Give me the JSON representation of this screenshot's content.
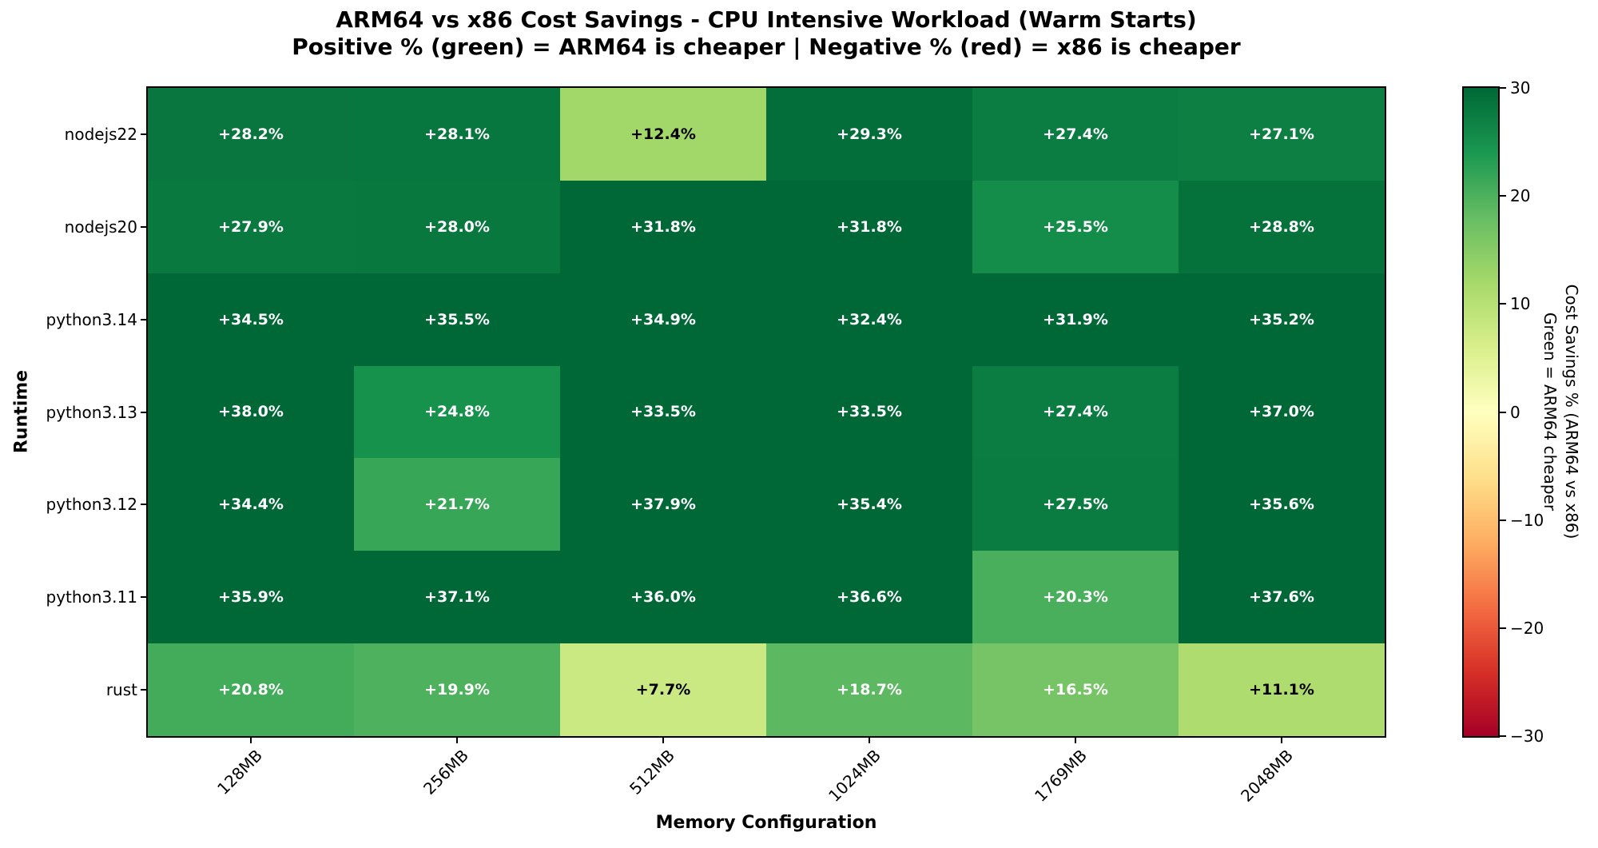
{
  "title": {
    "line1": "ARM64 vs x86 Cost Savings - CPU Intensive Workload (Warm Starts)",
    "line2": "Positive % (green) = ARM64 is cheaper | Negative % (red) = x86 is cheaper"
  },
  "axes": {
    "x_label": "Memory Configuration",
    "y_label": "Runtime"
  },
  "colorbar": {
    "label_line1": "Cost Savings % (ARM64 vs x86)",
    "label_line2": "Green = ARM64 cheaper",
    "tick_labels": [
      "30",
      "20",
      "10",
      "0",
      "−10",
      "−20",
      "−30"
    ],
    "tick_values": [
      30,
      20,
      10,
      0,
      -10,
      -20,
      -30
    ]
  },
  "chart_data": {
    "type": "heatmap",
    "title": "ARM64 vs x86 Cost Savings - CPU Intensive Workload (Warm Starts)",
    "subtitle": "Positive % (green) = ARM64 is cheaper | Negative % (red) = x86 is cheaper",
    "xlabel": "Memory Configuration",
    "ylabel": "Runtime",
    "x_categories": [
      "128MB",
      "256MB",
      "512MB",
      "1024MB",
      "1769MB",
      "2048MB"
    ],
    "y_categories": [
      "nodejs22",
      "nodejs20",
      "python3.14",
      "python3.13",
      "python3.12",
      "python3.11",
      "rust"
    ],
    "values": [
      [
        28.2,
        28.1,
        12.4,
        29.3,
        27.4,
        27.1
      ],
      [
        27.9,
        28.0,
        31.8,
        31.8,
        25.5,
        28.8
      ],
      [
        34.5,
        35.5,
        34.9,
        32.4,
        31.9,
        35.2
      ],
      [
        38.0,
        24.8,
        33.5,
        33.5,
        27.4,
        37.0
      ],
      [
        34.4,
        21.7,
        37.9,
        35.4,
        27.5,
        35.6
      ],
      [
        35.9,
        37.1,
        36.0,
        36.6,
        20.3,
        37.6
      ],
      [
        20.8,
        19.9,
        7.7,
        18.7,
        16.5,
        11.1
      ]
    ],
    "value_format": {
      "prefix": "+",
      "suffix": "%",
      "decimals": 1
    },
    "colormap": {
      "name": "RdYlGn",
      "vmin": -30,
      "vmax": 30,
      "anchors": [
        "#a50026",
        "#d73027",
        "#f46d43",
        "#fdae61",
        "#fee08b",
        "#ffffbf",
        "#d9ef8b",
        "#a6d96a",
        "#66bd63",
        "#1a9850",
        "#006837"
      ]
    },
    "legend_position": "right-colorbar",
    "grid": false
  }
}
